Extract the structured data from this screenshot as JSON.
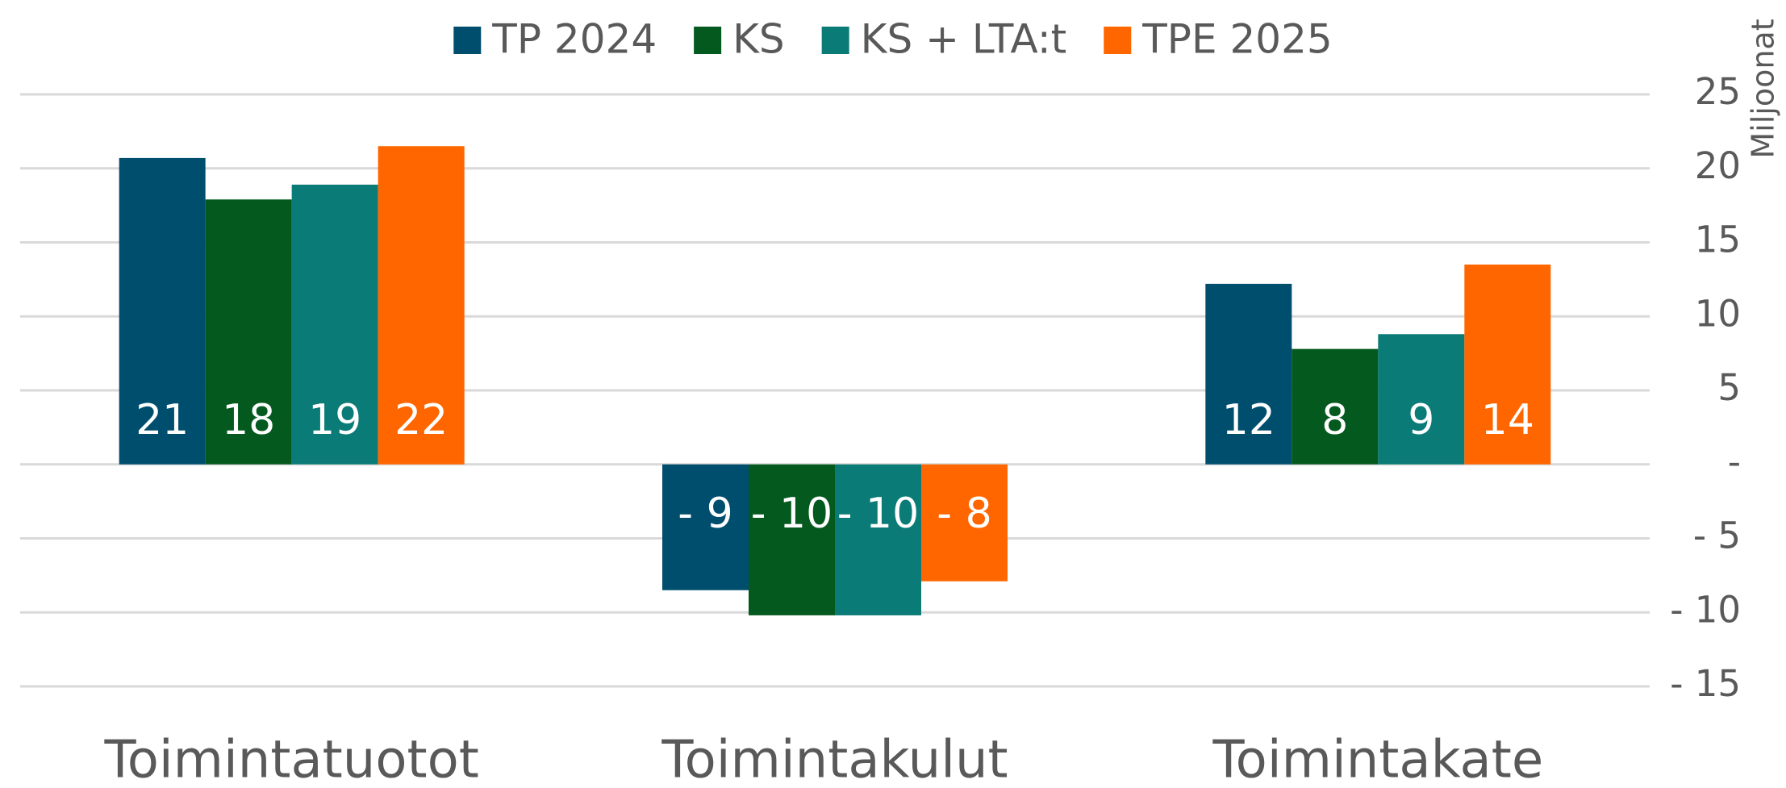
{
  "chart_data": {
    "type": "bar",
    "categories": [
      "Toimintatuotot",
      "Toimintakulut",
      "Toimintakate"
    ],
    "series": [
      {
        "name": "TP 2024",
        "color": "#004e6e",
        "values": [
          20.7,
          -8.5,
          12.2
        ],
        "value_labels": [
          "21",
          "- 9",
          "12"
        ]
      },
      {
        "name": "KS",
        "color": "#045a1e",
        "values": [
          17.9,
          -10.2,
          7.8
        ],
        "value_labels": [
          "18",
          "- 10",
          "8"
        ]
      },
      {
        "name": "KS + LTA:t",
        "color": "#0a7b76",
        "values": [
          18.9,
          -10.2,
          8.8
        ],
        "value_labels": [
          "19",
          "- 10",
          "9"
        ]
      },
      {
        "name": "TPE 2025",
        "color": "#ff6600",
        "values": [
          21.5,
          -7.9,
          13.5
        ],
        "value_labels": [
          "22",
          "- 8",
          "14"
        ]
      }
    ],
    "y_axis_label": "Miljoonat",
    "ylim": [
      -15,
      25
    ],
    "yticks": [
      {
        "value": -15,
        "label": "- 15"
      },
      {
        "value": -10,
        "label": "- 10"
      },
      {
        "value": -5,
        "label": "- 5"
      },
      {
        "value": 0,
        "label": "-"
      },
      5,
      10,
      15,
      20,
      25
    ],
    "grid": true,
    "legend": "top"
  }
}
